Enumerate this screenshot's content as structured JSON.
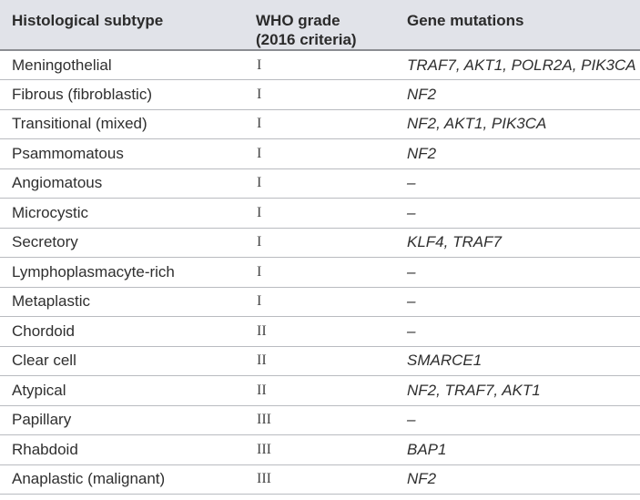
{
  "headers": {
    "subtype": "Histological subtype",
    "grade_line1": "WHO grade",
    "grade_line2": "(2016 criteria)",
    "genes": "Gene mutations"
  },
  "rows": [
    {
      "subtype": "Meningothelial",
      "grade": "I",
      "genes": "TRAF7, AKT1, POLR2A, PIK3CA"
    },
    {
      "subtype": "Fibrous (fibroblastic)",
      "grade": "I",
      "genes": "NF2"
    },
    {
      "subtype": "Transitional (mixed)",
      "grade": "I",
      "genes": "NF2, AKT1, PIK3CA"
    },
    {
      "subtype": "Psammomatous",
      "grade": "I",
      "genes": "NF2"
    },
    {
      "subtype": "Angiomatous",
      "grade": "I",
      "genes": "–"
    },
    {
      "subtype": "Microcystic",
      "grade": "I",
      "genes": "–"
    },
    {
      "subtype": "Secretory",
      "grade": "I",
      "genes": "KLF4, TRAF7"
    },
    {
      "subtype": "Lymphoplasmacyte-rich",
      "grade": "I",
      "genes": "–"
    },
    {
      "subtype": "Metaplastic",
      "grade": "I",
      "genes": "–"
    },
    {
      "subtype": "Chordoid",
      "grade": "II",
      "genes": "–"
    },
    {
      "subtype": "Clear cell",
      "grade": "II",
      "genes": "SMARCE1"
    },
    {
      "subtype": "Atypical",
      "grade": "II",
      "genes": "NF2, TRAF7, AKT1"
    },
    {
      "subtype": "Papillary",
      "grade": "III",
      "genes": "–"
    },
    {
      "subtype": "Rhabdoid",
      "grade": "III",
      "genes": "BAP1"
    },
    {
      "subtype": "Anaplastic (malignant)",
      "grade": "III",
      "genes": "NF2"
    }
  ]
}
